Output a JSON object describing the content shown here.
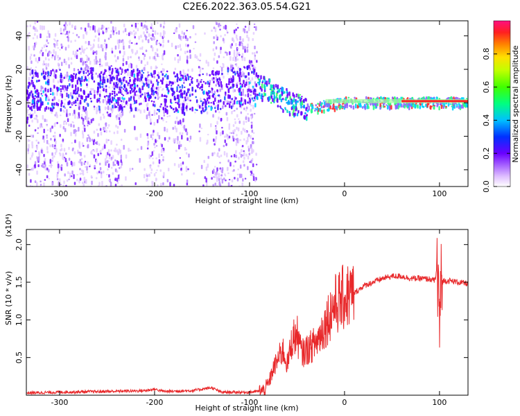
{
  "title": "C2E6.2022.363.05.54.G21",
  "colors": {
    "background": "#ffffff",
    "snr_line": "#e8282a",
    "spectro_low": "#e6ccff",
    "spectro_mid": "#6a00ff",
    "spectro_high": "#ff2020"
  },
  "chart_data": [
    {
      "type": "heatmap",
      "title": "",
      "xlabel": "Height of straight line (km)",
      "ylabel": "Frequency (Hz)",
      "xlim": [
        -335,
        130
      ],
      "ylim": [
        -50,
        49
      ],
      "xticks": [
        -300,
        -200,
        -100,
        0,
        100
      ],
      "yticks": [
        -40,
        -20,
        0,
        20,
        40
      ],
      "colorbar": {
        "label": "Normalized spectral amplitude",
        "range": [
          0.0,
          1.0
        ],
        "ticks": [
          "0.0",
          "0.2",
          "0.4",
          "0.6",
          "0.8"
        ],
        "tick_values": [
          0.0,
          0.2,
          0.4,
          0.6,
          0.8
        ]
      },
      "dense_region_end_km": -93,
      "ridge_frequency_hz": [
        [
          -330,
          8
        ],
        [
          -250,
          10
        ],
        [
          -200,
          8
        ],
        [
          -160,
          6
        ],
        [
          -100,
          12
        ],
        [
          -80,
          8
        ],
        [
          -65,
          3
        ],
        [
          -55,
          0
        ],
        [
          -40,
          -2
        ],
        [
          -20,
          -1
        ],
        [
          0,
          1
        ],
        [
          50,
          1
        ],
        [
          130,
          1
        ]
      ]
    },
    {
      "type": "line",
      "title": "",
      "xlabel": "Height of straight line (km)",
      "ylabel": "SNR (10 * v/v)",
      "y_multiplier": "(x10⁴)",
      "xlim": [
        -335,
        130
      ],
      "ylim": [
        0,
        2.2
      ],
      "xticks": [
        -300,
        -200,
        -100,
        0,
        100
      ],
      "yticks": [
        0.5,
        1.0,
        1.5,
        2.0
      ],
      "ytick_labels": [
        "0.5",
        "1.0",
        "1.5",
        "2.0"
      ],
      "series": [
        {
          "x": [
            -335,
            -300,
            -250,
            -210,
            -200,
            -190,
            -160,
            -140,
            -130,
            -100,
            -85,
            -80,
            -75,
            -65,
            -60,
            -55,
            -50,
            -45,
            -40,
            -30,
            -20,
            -15,
            -10,
            -5,
            0,
            10,
            20,
            30,
            40,
            50,
            60,
            70,
            80,
            90,
            95,
            98,
            100,
            102,
            105,
            110,
            120,
            130
          ],
          "y": [
            0.03,
            0.04,
            0.05,
            0.06,
            0.08,
            0.05,
            0.06,
            0.1,
            0.04,
            0.04,
            0.06,
            0.15,
            0.35,
            0.6,
            0.4,
            0.75,
            0.8,
            0.55,
            0.6,
            0.7,
            0.95,
            1.1,
            1.2,
            1.25,
            1.3,
            1.35,
            1.45,
            1.5,
            1.55,
            1.58,
            1.58,
            1.55,
            1.55,
            1.54,
            1.52,
            1.7,
            1.0,
            1.5,
            1.52,
            1.52,
            1.5,
            1.48
          ]
        }
      ]
    }
  ]
}
